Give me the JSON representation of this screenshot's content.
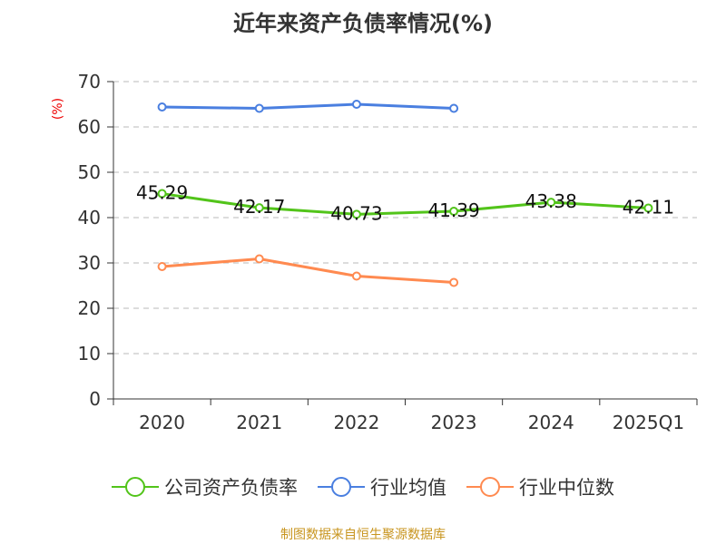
{
  "chart_data": {
    "type": "line",
    "title": "近年来资产负债率情况(%)",
    "ylabel": "(%)",
    "categories": [
      "2020",
      "2021",
      "2022",
      "2023",
      "2024",
      "2025Q1"
    ],
    "ylim": [
      0,
      70
    ],
    "yticks": [
      0,
      10,
      20,
      30,
      40,
      50,
      60,
      70
    ],
    "grid": true,
    "legend_position": "bottom",
    "series": [
      {
        "name": "公司资产负债率",
        "color": "#52c41a",
        "values": [
          45.29,
          42.17,
          40.73,
          41.39,
          43.38,
          42.11
        ],
        "labels": [
          "45.29",
          "42.17",
          "40.73",
          "41.39",
          "43.38",
          "42.11"
        ]
      },
      {
        "name": "行业均值",
        "color": "#4a7fe0",
        "values": [
          64.4,
          64.1,
          65.0,
          64.1,
          null,
          null
        ]
      },
      {
        "name": "行业中位数",
        "color": "#ff8a50",
        "values": [
          29.2,
          30.9,
          27.1,
          25.7,
          null,
          null
        ]
      }
    ]
  },
  "source": "制图数据来自恒生聚源数据库"
}
